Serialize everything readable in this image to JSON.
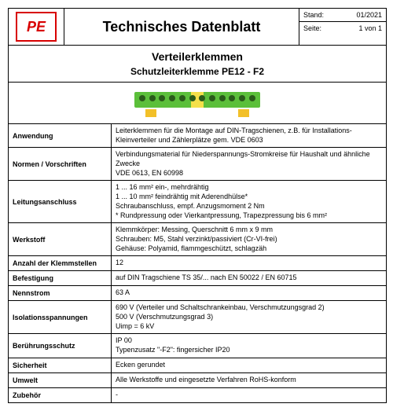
{
  "header": {
    "logo_text": "PE",
    "title": "Technisches Datenblatt",
    "stand_label": "Stand:",
    "stand_value": "01/2021",
    "seite_label": "Seite:",
    "seite_value": "1 von 1"
  },
  "subheader": {
    "line1": "Verteilerklemmen",
    "line2": "Schutzleiterklemme PE12 - F2"
  },
  "image": {
    "body_color_green": "#5bbf3a",
    "body_color_yellow": "#f4e04a",
    "foot_color": "#f2c029",
    "hole_count": 12
  },
  "rows": [
    {
      "label": "Anwendung",
      "value": "Leiterklemmen für die Montage auf DIN-Tragschienen, z.B. für Installations-Kleinverteiler und Zählerplätze gem. VDE 0603"
    },
    {
      "label": "Normen / Vorschriften",
      "value": "Verbindungsmaterial für Niederspannungs-Stromkreise für Haushalt und ähnliche Zwecke\nVDE 0613, EN 60998"
    },
    {
      "label": "Leitungsanschluss",
      "value": "1 ... 16 mm² ein-, mehrdrähtig\n1 ... 10 mm² feindrähtig mit Aderendhülse*\nSchraubanschluss, empf. Anzugsmoment 2 Nm\n* Rundpressung oder Vierkantpressung, Trapezpressung bis 6 mm²"
    },
    {
      "label": "Werkstoff",
      "value": "Klemmkörper: Messing, Querschnitt 6 mm x 9 mm\nSchrauben:    M5, Stahl verzinkt/passiviert (Cr-VI-frei)\nGehäuse:       Polyamid, flammgeschützt, schlagzäh"
    },
    {
      "label": "Anzahl der Klemmstellen",
      "value": "12"
    },
    {
      "label": "Befestigung",
      "value": "auf DIN Tragschiene TS 35/... nach EN 50022 / EN 60715"
    },
    {
      "label": "Nennstrom",
      "value": "63 A"
    },
    {
      "label": "Isolationsspannungen",
      "value": "690 V (Verteiler und Schaltschrankeinbau, Verschmutzungsgrad 2)\n500 V (Verschmutzungsgrad 3)\nUimp = 6 kV"
    },
    {
      "label": "Berührungsschutz",
      "value": "IP 00\nTypenzusatz \"-F2\": fingersicher IP20"
    },
    {
      "label": "Sicherheit",
      "value": "Ecken gerundet"
    },
    {
      "label": "Umwelt",
      "value": "Alle Werkstoffe und eingesetzte Verfahren RoHS-konform"
    },
    {
      "label": "Zubehör",
      "value": "-"
    }
  ]
}
